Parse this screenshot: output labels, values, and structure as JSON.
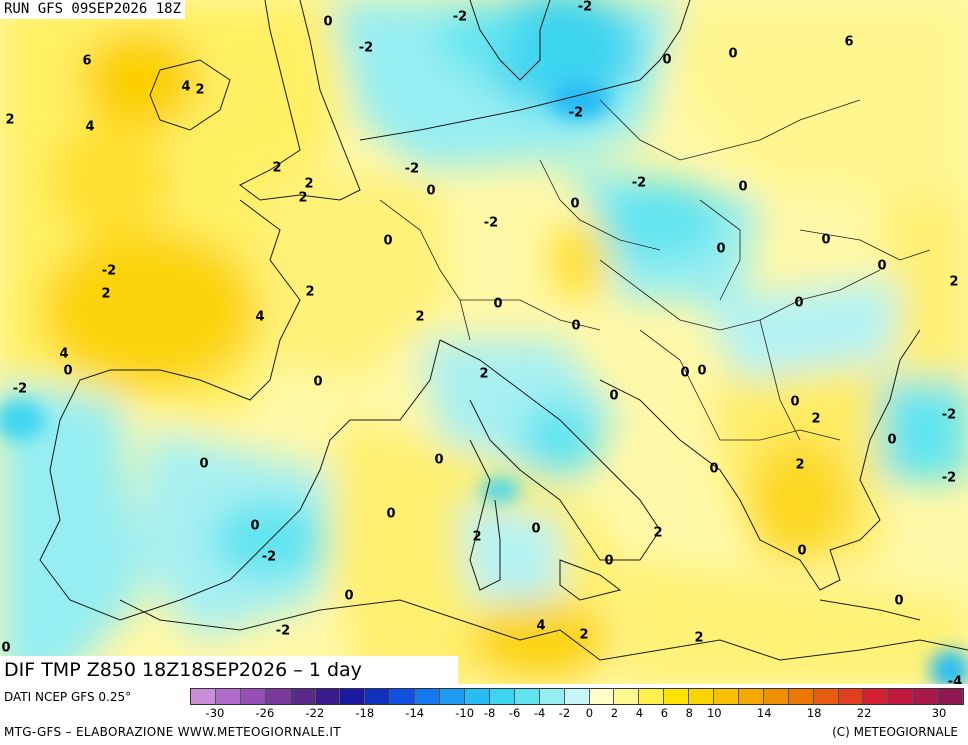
{
  "header": {
    "run_label": "RUN GFS 09SEP2026 18Z"
  },
  "map": {
    "title": "DIF TMP Z850 18Z18SEP2026 – 1 day",
    "contour_labels": [
      {
        "t": "-2"
      },
      {
        "t": "-2"
      },
      {
        "t": "-2"
      },
      {
        "t": "0"
      },
      {
        "t": "-2"
      },
      {
        "t": "0"
      },
      {
        "t": "0"
      },
      {
        "t": "6"
      },
      {
        "t": "6"
      },
      {
        "t": "4"
      },
      {
        "t": "2"
      },
      {
        "t": "2"
      },
      {
        "t": "4"
      },
      {
        "t": "-2"
      },
      {
        "t": "0"
      },
      {
        "t": "2"
      },
      {
        "t": "2"
      },
      {
        "t": "2"
      },
      {
        "t": "-2"
      },
      {
        "t": "0"
      },
      {
        "t": "0"
      },
      {
        "t": "-2"
      },
      {
        "t": "0"
      },
      {
        "t": "0"
      },
      {
        "t": "0"
      },
      {
        "t": "0"
      },
      {
        "t": "2"
      },
      {
        "t": "0"
      },
      {
        "t": "-2"
      },
      {
        "t": "2"
      },
      {
        "t": "4"
      },
      {
        "t": "2"
      },
      {
        "t": "2"
      },
      {
        "t": "0"
      },
      {
        "t": "0"
      },
      {
        "t": "4"
      },
      {
        "t": "0"
      },
      {
        "t": "0"
      },
      {
        "t": "2"
      },
      {
        "t": "0"
      },
      {
        "t": "0"
      },
      {
        "t": "0"
      },
      {
        "t": "0"
      },
      {
        "t": "-2"
      },
      {
        "t": "2"
      },
      {
        "t": "-2"
      },
      {
        "t": "0"
      },
      {
        "t": "0"
      },
      {
        "t": "0"
      },
      {
        "t": "0"
      },
      {
        "t": "2"
      },
      {
        "t": "-2"
      },
      {
        "t": "0"
      },
      {
        "t": "0"
      },
      {
        "t": "2"
      },
      {
        "t": "0"
      },
      {
        "t": "-2"
      },
      {
        "t": "2"
      },
      {
        "t": "0"
      },
      {
        "t": "0"
      },
      {
        "t": "0"
      },
      {
        "t": "-2"
      },
      {
        "t": "4"
      },
      {
        "t": "2"
      },
      {
        "t": "2"
      },
      {
        "t": "0"
      },
      {
        "t": "0"
      },
      {
        "t": "-4"
      }
    ]
  },
  "legend": {
    "source": "DATI NCEP GFS 0.25°",
    "colors": [
      "#c88ed8",
      "#b06ccc",
      "#9450b4",
      "#7a3a9c",
      "#5a2a8a",
      "#3a1c8c",
      "#1a1aa0",
      "#1030c0",
      "#1050e0",
      "#1478ee",
      "#1e9cf4",
      "#28bcf4",
      "#3cd4f0",
      "#60e4f0",
      "#96eef2",
      "#c8f6f6",
      "#ffffc8",
      "#fff890",
      "#fff050",
      "#ffe400",
      "#fcd400",
      "#f8c000",
      "#f4a800",
      "#f09000",
      "#ec7800",
      "#e85c10",
      "#e04020",
      "#d42030",
      "#c01840",
      "#a81848",
      "#901850"
    ],
    "ticks": [
      "-30",
      "-26",
      "-22",
      "-18",
      "-14",
      "-10",
      "-8",
      "-6",
      "-4",
      "-2",
      "0",
      "2",
      "4",
      "6",
      "8",
      "10",
      "14",
      "18",
      "22",
      "30"
    ]
  },
  "footer": {
    "credits_left": "MTG-GFS – ELABORAZIONE WWW.METEOGIORNALE.IT",
    "credits_right": "(C) METEOGIORNALE"
  }
}
